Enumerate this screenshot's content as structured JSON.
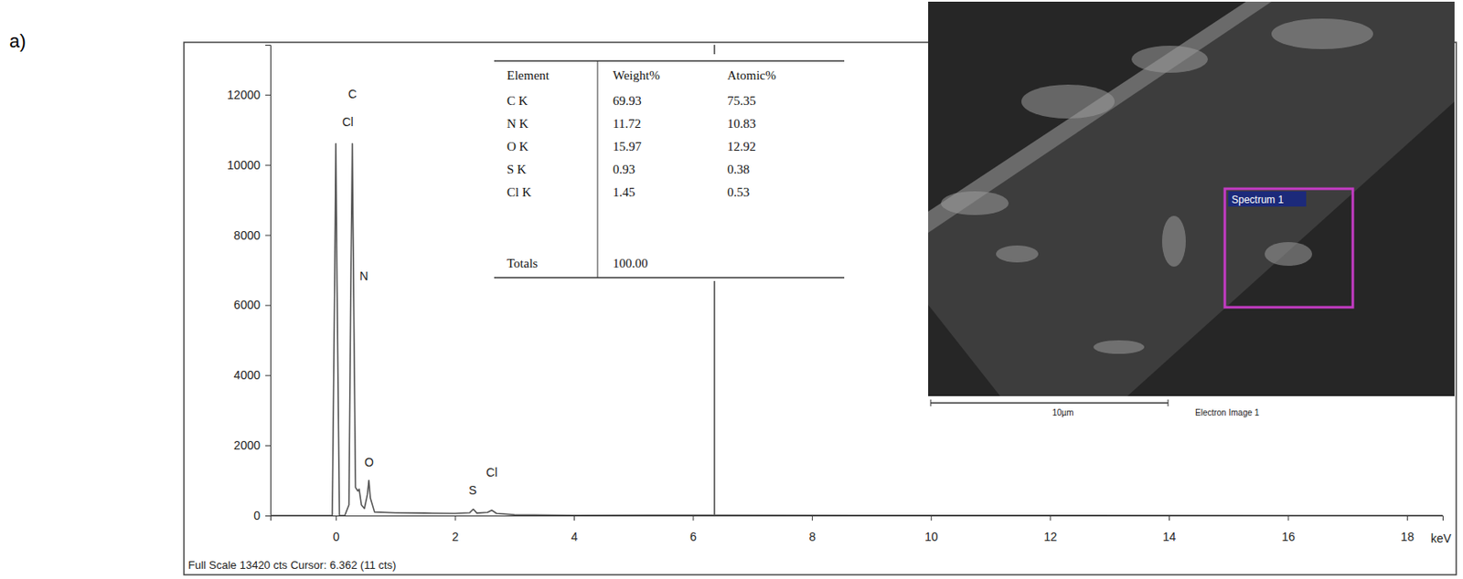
{
  "chart_data": {
    "type": "line",
    "panel_label": "a)",
    "x": [
      -1.1,
      -0.06,
      -0.02,
      0,
      0.02,
      0.06,
      0.15,
      0.22,
      0.25,
      0.277,
      0.3,
      0.33,
      0.37,
      0.392,
      0.43,
      0.48,
      0.53,
      0.555,
      0.58,
      0.65,
      1,
      1.5,
      2,
      2.25,
      2.31,
      2.37,
      2.55,
      2.62,
      2.7,
      3,
      4,
      6.362,
      10,
      18.6
    ],
    "values": [
      0,
      0,
      6600,
      10600,
      6600,
      0,
      0,
      300,
      6200,
      10600,
      6200,
      800,
      700,
      750,
      300,
      200,
      600,
      1000,
      500,
      100,
      80,
      70,
      60,
      80,
      180,
      70,
      90,
      150,
      60,
      20,
      5,
      11,
      3,
      0
    ],
    "color": "#555555",
    "xlim": [
      -1.1,
      18.6
    ],
    "xticks": [
      0,
      2,
      4,
      6,
      8,
      10,
      12,
      14,
      16,
      18
    ],
    "ylim": [
      0,
      13420
    ],
    "yticks": [
      0,
      2000,
      4000,
      6000,
      8000,
      10000,
      12000
    ],
    "x_label": "keV",
    "footer": "Full Scale 13420 cts Cursor: 6.362 (11 cts)",
    "cursor": 6.362,
    "annotations": [
      {
        "text": "C",
        "x": 0.28,
        "y": 11900
      },
      {
        "text": "Cl",
        "x": 0.2,
        "y": 11100
      },
      {
        "text": "N",
        "x": 0.4,
        "y": 6700
      },
      {
        "text": "O",
        "x": 0.56,
        "y": 1400
      },
      {
        "text": "S",
        "x": 2.3,
        "y": 600
      },
      {
        "text": "Cl",
        "x": 2.62,
        "y": 1100
      }
    ],
    "table": {
      "header": [
        "Element",
        "Weight%",
        "Atomic%"
      ],
      "rows": [
        [
          "C K",
          69.93,
          75.35
        ],
        [
          "N K",
          11.72,
          10.83
        ],
        [
          "O K",
          15.97,
          12.92
        ],
        [
          "S K",
          0.93,
          0.38
        ],
        [
          "Cl K",
          1.45,
          0.53
        ]
      ],
      "total": [
        "Totals",
        "100.00"
      ]
    },
    "image": {
      "spectrum_label": "Spectrum 1",
      "scale_bar": "10µm",
      "caption": "Electron Image 1"
    }
  }
}
